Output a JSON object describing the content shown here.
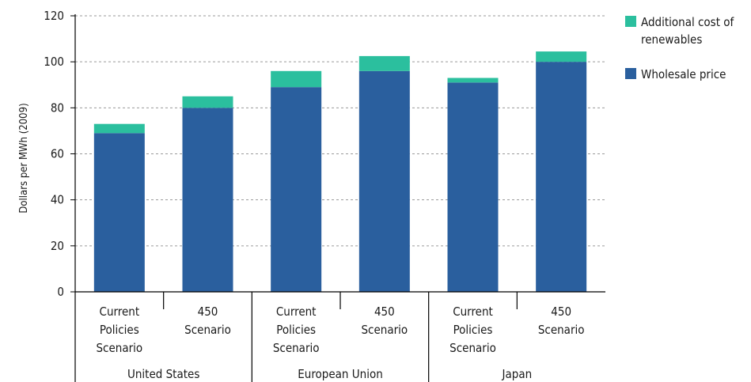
{
  "chart_data": {
    "type": "bar",
    "stacked": true,
    "ylabel": "Dollars per MWh (2009)",
    "ylim": [
      0,
      120
    ],
    "yticks": [
      0,
      20,
      40,
      60,
      80,
      100,
      120
    ],
    "grid": true,
    "legend_position": "right",
    "groups": [
      {
        "name": "United States",
        "categories": [
          [
            "Current",
            "Policies",
            "Scenario"
          ],
          [
            "450",
            "Scenario"
          ]
        ]
      },
      {
        "name": "European Union",
        "categories": [
          [
            "Current",
            "Policies",
            "Scenario"
          ],
          [
            "450",
            "Scenario"
          ]
        ]
      },
      {
        "name": "Japan",
        "categories": [
          [
            "Current",
            "Policies",
            "Scenario"
          ],
          [
            "450",
            "Scenario"
          ]
        ]
      }
    ],
    "series": [
      {
        "name": "Wholesale price",
        "color": "#2a5f9e",
        "values": [
          69,
          80,
          89,
          96,
          91,
          100
        ]
      },
      {
        "name": "Additional cost of renewables",
        "color": "#2bbf9e",
        "values": [
          4,
          5,
          7,
          6.5,
          2,
          4.5
        ]
      }
    ],
    "legend": [
      {
        "lines": [
          "Additional cost of",
          "renewables"
        ],
        "series": 1
      },
      {
        "lines": [
          "Wholesale price"
        ],
        "series": 0
      }
    ]
  }
}
